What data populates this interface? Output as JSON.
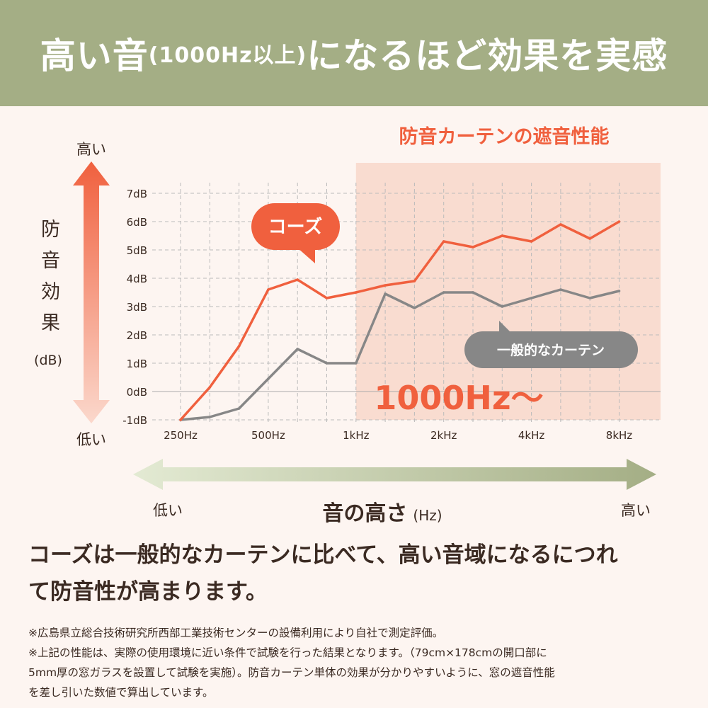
{
  "header": {
    "title_a": "高い音",
    "title_b": "(1000Hz以上)",
    "title_c": "になるほど効果を実感"
  },
  "colors": {
    "header_bg": "#a4ae85",
    "accent": "#f0603e",
    "gray": "#878787",
    "shade": "#f9dcd0",
    "bg": "#fdf5f1"
  },
  "chart_data": {
    "type": "line",
    "title": "防音カーテンの遮音性能",
    "ylabel": "防音効果",
    "ylabel_unit": "(dB)",
    "y_high": "高い",
    "y_low": "低い",
    "xlabel": "音の高さ",
    "xlabel_unit": "(Hz)",
    "x_low": "低い",
    "x_high": "高い",
    "ylim": [
      -1,
      7
    ],
    "y_ticks": [
      "-1dB",
      "0dB",
      "1dB",
      "2dB",
      "3dB",
      "4dB",
      "5dB",
      "6dB",
      "7dB"
    ],
    "x": [
      250,
      315,
      400,
      500,
      630,
      800,
      1000,
      1250,
      1600,
      2000,
      2500,
      3150,
      4000,
      5000,
      6300,
      8000
    ],
    "x_tick_labels": [
      {
        "at": 250,
        "label": "250Hz"
      },
      {
        "at": 500,
        "label": "500Hz"
      },
      {
        "at": 1000,
        "label": "1kHz"
      },
      {
        "at": 2000,
        "label": "2kHz"
      },
      {
        "at": 4000,
        "label": "4kHz"
      },
      {
        "at": 8000,
        "label": "8kHz"
      }
    ],
    "highlight": {
      "from": 1000,
      "label": "1000Hz〜"
    },
    "grid": true,
    "series": [
      {
        "name": "コーズ",
        "color": "#f0603e",
        "values": [
          -1.0,
          0.15,
          1.6,
          3.6,
          3.95,
          3.3,
          3.5,
          3.75,
          3.9,
          5.3,
          5.1,
          5.5,
          5.3,
          5.9,
          5.4,
          6.0
        ]
      },
      {
        "name": "一般的なカーテン",
        "color": "#878787",
        "values": [
          -1.0,
          -0.9,
          -0.6,
          0.45,
          1.5,
          1.0,
          1.0,
          3.45,
          2.95,
          3.5,
          3.5,
          3.0,
          3.3,
          3.6,
          3.3,
          3.55
        ]
      }
    ]
  },
  "summary": {
    "line1": "コーズは一般的なカーテンに比べて、高い音域になるにつれ",
    "line2": "て防音性が高まります。"
  },
  "footnotes": [
    "※広島県立総合技術研究所西部工業技術センターの設備利用により自社で測定評価。",
    "※上記の性能は、実際の使用環境に近い条件で試験を行った結果となります。（79cm×178cmの開口部に",
    "5mm厚の窓ガラスを設置して試験を実施）。防音カーテン単体の効果が分かりやすいように、窓の遮音性能",
    "を差し引いた数値で算出しています。"
  ]
}
